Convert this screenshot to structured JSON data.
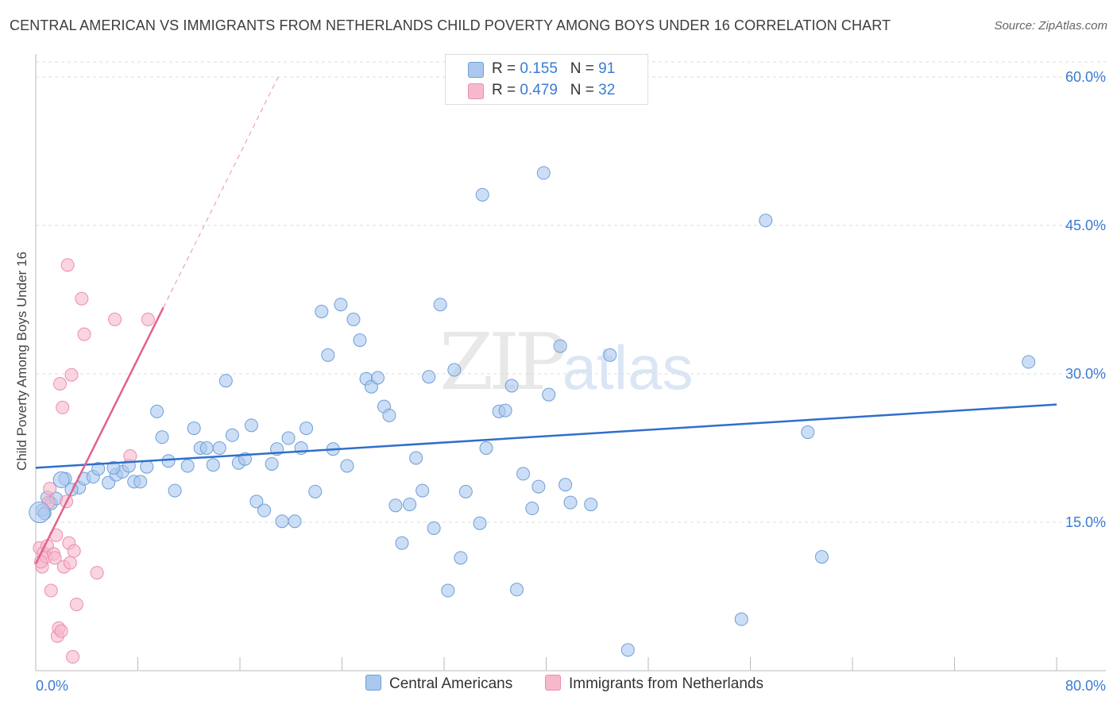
{
  "title": "CENTRAL AMERICAN VS IMMIGRANTS FROM NETHERLANDS CHILD POVERTY AMONG BOYS UNDER 16 CORRELATION CHART",
  "source": "Source: ZipAtlas.com",
  "watermark": {
    "zip": "ZIP",
    "atlas": "atlas"
  },
  "legend_top": {
    "rows": [
      {
        "r_label": "R = ",
        "r_value": "0.155",
        "n_label": "N = ",
        "n_value": "91"
      },
      {
        "r_label": "R = ",
        "r_value": "0.479",
        "n_label": "N = ",
        "n_value": "32"
      }
    ]
  },
  "colors": {
    "blue_fill": "#aac8ee",
    "blue_stroke": "#6d9fd8",
    "blue_line": "#2f6fca",
    "pink_fill": "#f7b8cb",
    "pink_stroke": "#ea8fac",
    "pink_line": "#e0628e",
    "grid": "#dddddd",
    "tick_label": "#3a7bd5"
  },
  "chart_data": {
    "type": "scatter",
    "title": "CENTRAL AMERICAN VS IMMIGRANTS FROM NETHERLANDS CHILD POVERTY AMONG BOYS UNDER 16 CORRELATION CHART",
    "xlabel": "",
    "ylabel": "Child Poverty Among Boys Under 16",
    "xlim": [
      0,
      80
    ],
    "ylim": [
      0,
      60
    ],
    "x_tick_labels": [
      "0.0%",
      "80.0%"
    ],
    "y_tick_values": [
      15,
      30,
      45,
      60
    ],
    "y_tick_labels": [
      "15.0%",
      "30.0%",
      "45.0%",
      "60.0%"
    ],
    "grid": true,
    "legend_placement": "bottom",
    "series": [
      {
        "name": "Central Americans",
        "color": "#aac8ee",
        "r": 0.155,
        "n": 91,
        "trend": {
          "x": [
            0,
            80
          ],
          "y": [
            20.5,
            26.9
          ]
        },
        "points": [
          [
            0.5,
            16.2
          ],
          [
            0.9,
            17.5
          ],
          [
            1.2,
            16.9
          ],
          [
            2.3,
            19.4
          ],
          [
            3.4,
            18.5
          ],
          [
            3.8,
            19.4
          ],
          [
            4.5,
            19.6
          ],
          [
            4.9,
            20.4
          ],
          [
            5.7,
            19.0
          ],
          [
            6.3,
            19.8
          ],
          [
            6.8,
            20.1
          ],
          [
            7.3,
            20.7
          ],
          [
            7.7,
            19.1
          ],
          [
            8.2,
            19.1
          ],
          [
            8.7,
            20.6
          ],
          [
            9.5,
            26.2
          ],
          [
            9.9,
            23.6
          ],
          [
            10.4,
            21.2
          ],
          [
            10.9,
            18.2
          ],
          [
            11.9,
            20.7
          ],
          [
            12.4,
            24.5
          ],
          [
            12.9,
            22.5
          ],
          [
            13.4,
            22.5
          ],
          [
            13.9,
            20.8
          ],
          [
            14.4,
            22.5
          ],
          [
            14.9,
            29.3
          ],
          [
            15.4,
            23.8
          ],
          [
            15.9,
            21.0
          ],
          [
            16.4,
            21.4
          ],
          [
            16.9,
            24.8
          ],
          [
            17.3,
            17.1
          ],
          [
            17.9,
            16.2
          ],
          [
            18.5,
            20.9
          ],
          [
            18.9,
            22.4
          ],
          [
            19.3,
            15.1
          ],
          [
            19.8,
            23.5
          ],
          [
            20.3,
            15.1
          ],
          [
            20.8,
            22.5
          ],
          [
            21.2,
            24.5
          ],
          [
            21.9,
            18.1
          ],
          [
            22.4,
            36.3
          ],
          [
            22.9,
            31.9
          ],
          [
            23.3,
            22.4
          ],
          [
            23.9,
            37.0
          ],
          [
            24.4,
            20.7
          ],
          [
            24.9,
            35.5
          ],
          [
            25.4,
            33.4
          ],
          [
            25.9,
            29.5
          ],
          [
            26.3,
            28.7
          ],
          [
            26.8,
            29.6
          ],
          [
            27.3,
            26.7
          ],
          [
            27.7,
            25.8
          ],
          [
            28.2,
            16.7
          ],
          [
            28.7,
            12.9
          ],
          [
            29.3,
            16.8
          ],
          [
            29.8,
            21.5
          ],
          [
            30.3,
            18.2
          ],
          [
            30.8,
            29.7
          ],
          [
            31.2,
            14.4
          ],
          [
            31.7,
            37.0
          ],
          [
            32.3,
            8.1
          ],
          [
            32.8,
            30.4
          ],
          [
            33.3,
            11.4
          ],
          [
            33.7,
            18.1
          ],
          [
            34.8,
            14.9
          ],
          [
            35.0,
            48.1
          ],
          [
            35.3,
            22.5
          ],
          [
            36.3,
            26.2
          ],
          [
            36.8,
            26.3
          ],
          [
            37.3,
            28.8
          ],
          [
            37.7,
            8.2
          ],
          [
            38.2,
            19.9
          ],
          [
            38.9,
            16.4
          ],
          [
            39.4,
            18.6
          ],
          [
            39.8,
            50.3
          ],
          [
            40.2,
            27.9
          ],
          [
            41.1,
            32.8
          ],
          [
            41.5,
            18.8
          ],
          [
            41.9,
            17.0
          ],
          [
            43.5,
            16.8
          ],
          [
            45.0,
            31.9
          ],
          [
            46.4,
            2.1
          ],
          [
            55.3,
            5.2
          ],
          [
            57.2,
            45.5
          ],
          [
            60.5,
            24.1
          ],
          [
            61.6,
            11.5
          ],
          [
            77.8,
            31.2
          ],
          [
            0.7,
            15.9
          ],
          [
            1.6,
            17.4
          ],
          [
            2.8,
            18.3
          ],
          [
            6.1,
            20.5
          ]
        ]
      },
      {
        "name": "Immigrants from Netherlands",
        "color": "#f7b8cb",
        "r": 0.479,
        "n": 32,
        "trend": {
          "x": [
            0,
            10
          ],
          "y": [
            10.8,
            36.7
          ]
        },
        "trend_extended": {
          "x": [
            10,
            19
          ],
          "y": [
            36.7,
            60
          ]
        },
        "points": [
          [
            0.3,
            12.4
          ],
          [
            0.5,
            10.5
          ],
          [
            0.6,
            11.9
          ],
          [
            0.8,
            11.5
          ],
          [
            0.9,
            12.6
          ],
          [
            1.0,
            17.0
          ],
          [
            1.1,
            18.4
          ],
          [
            1.2,
            8.1
          ],
          [
            1.4,
            11.8
          ],
          [
            1.5,
            11.4
          ],
          [
            1.6,
            13.7
          ],
          [
            1.7,
            3.5
          ],
          [
            1.8,
            4.3
          ],
          [
            1.9,
            29.0
          ],
          [
            2.0,
            4.0
          ],
          [
            2.1,
            26.6
          ],
          [
            2.2,
            10.5
          ],
          [
            2.4,
            17.1
          ],
          [
            2.5,
            41.0
          ],
          [
            2.6,
            12.9
          ],
          [
            2.7,
            10.9
          ],
          [
            2.8,
            29.9
          ],
          [
            2.9,
            1.4
          ],
          [
            3.0,
            12.1
          ],
          [
            3.2,
            6.7
          ],
          [
            3.6,
            37.6
          ],
          [
            3.8,
            34.0
          ],
          [
            4.8,
            9.9
          ],
          [
            6.2,
            35.5
          ],
          [
            7.4,
            21.7
          ],
          [
            8.8,
            35.5
          ],
          [
            0.4,
            11.0
          ]
        ]
      }
    ]
  },
  "legend_bottom": [
    "Central Americans",
    "Immigrants from Netherlands"
  ]
}
